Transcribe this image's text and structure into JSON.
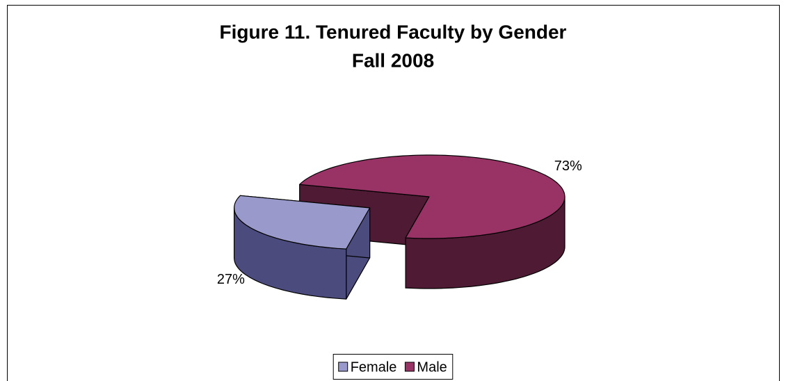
{
  "chart_data": {
    "type": "pie3d",
    "title": "Figure 11. Tenured Faculty by Gender",
    "subtitle": "Fall 2008",
    "categories": [
      "Female",
      "Male"
    ],
    "values": [
      27,
      73
    ],
    "value_labels": [
      "27%",
      "73%"
    ],
    "colors": [
      "#9999cc",
      "#993366"
    ],
    "side_colors": [
      "#4b4b7e",
      "#4f1a33"
    ],
    "exploded": [
      true,
      false
    ],
    "legend": "bottom"
  }
}
